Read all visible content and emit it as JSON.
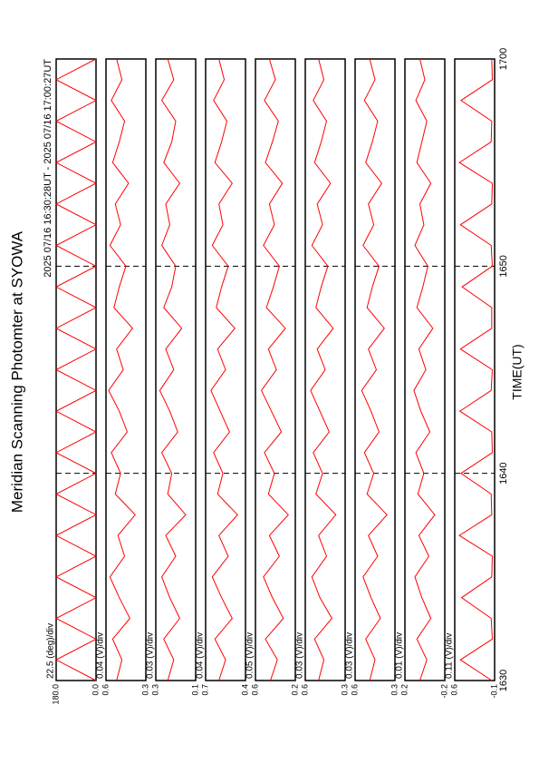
{
  "chart_data": {
    "type": "line",
    "title": "Meridian Scanning Photomter at SYOWA",
    "subtitle": "2025 07/16 16:30:28UT - 2025 07/16 17:00:27UT",
    "xlabel": "TIME(UT)",
    "xlim": [
      0,
      30
    ],
    "xticks": [
      {
        "value": 0,
        "label": "1630"
      },
      {
        "value": 10,
        "label": "1640"
      },
      {
        "value": 20,
        "label": "1650"
      },
      {
        "value": 30,
        "label": "1700"
      }
    ],
    "grid": true,
    "x": [
      0,
      1,
      2,
      3,
      4,
      5,
      6,
      7,
      8,
      9,
      10,
      11,
      12,
      13,
      14,
      15,
      16,
      17,
      18,
      19,
      20,
      21,
      22,
      23,
      24,
      25,
      26,
      27,
      28,
      29,
      30
    ],
    "series": [
      {
        "name": "22.5 (deg)/div",
        "color": "#ff0000",
        "ylim": [
          0.0,
          180.0
        ],
        "yticks": [
          {
            "value": 0,
            "label": "0.0"
          },
          {
            "value": 180,
            "label": "180.0"
          }
        ],
        "values": [
          0,
          180,
          0,
          180,
          0,
          180,
          0,
          180,
          0,
          180,
          0,
          180,
          0,
          180,
          0,
          180,
          0,
          180,
          0,
          180,
          0,
          180,
          0,
          180,
          0,
          180,
          0,
          180,
          0,
          180,
          0
        ]
      },
      {
        "name": "0.04 (V)/div",
        "color": "#ff0000",
        "ylim": [
          0.3,
          0.6
        ],
        "yticks": [
          0.3,
          0.6
        ],
        "values": [
          0.52,
          0.48,
          0.55,
          0.42,
          0.5,
          0.57,
          0.46,
          0.51,
          0.38,
          0.53,
          0.49,
          0.56,
          0.44,
          0.5,
          0.58,
          0.47,
          0.52,
          0.4,
          0.54,
          0.5,
          0.45,
          0.57,
          0.49,
          0.53,
          0.43,
          0.55,
          0.5,
          0.46,
          0.56,
          0.48,
          0.52
        ]
      },
      {
        "name": "0.03 (V)/div",
        "color": "#ff0000",
        "ylim": [
          0.1,
          0.3
        ],
        "yticks": [
          0.1,
          0.3
        ],
        "values": [
          0.24,
          0.21,
          0.26,
          0.18,
          0.23,
          0.27,
          0.2,
          0.25,
          0.15,
          0.24,
          0.22,
          0.27,
          0.19,
          0.23,
          0.28,
          0.21,
          0.25,
          0.17,
          0.26,
          0.22,
          0.2,
          0.27,
          0.23,
          0.25,
          0.18,
          0.26,
          0.22,
          0.2,
          0.27,
          0.21,
          0.24
        ]
      },
      {
        "name": "0.04 (V)/div",
        "color": "#ff0000",
        "ylim": [
          0.4,
          0.7
        ],
        "yticks": [
          0.4,
          0.7
        ],
        "values": [
          0.6,
          0.55,
          0.63,
          0.5,
          0.58,
          0.65,
          0.53,
          0.6,
          0.46,
          0.61,
          0.57,
          0.64,
          0.52,
          0.59,
          0.66,
          0.55,
          0.61,
          0.48,
          0.62,
          0.58,
          0.53,
          0.65,
          0.57,
          0.6,
          0.5,
          0.63,
          0.58,
          0.54,
          0.64,
          0.56,
          0.6
        ]
      },
      {
        "name": "0.05 (V)/div",
        "color": "#ff0000",
        "ylim": [
          0.2,
          0.6
        ],
        "yticks": [
          0.2,
          0.6
        ],
        "values": [
          0.45,
          0.38,
          0.5,
          0.32,
          0.43,
          0.52,
          0.36,
          0.46,
          0.27,
          0.47,
          0.41,
          0.51,
          0.34,
          0.44,
          0.54,
          0.39,
          0.47,
          0.3,
          0.49,
          0.42,
          0.36,
          0.52,
          0.41,
          0.46,
          0.33,
          0.5,
          0.43,
          0.37,
          0.51,
          0.4,
          0.46
        ]
      },
      {
        "name": "0.03 (V)/div",
        "color": "#ff0000",
        "ylim": [
          0.3,
          0.6
        ],
        "yticks": [
          0.3,
          0.6
        ],
        "values": [
          0.5,
          0.46,
          0.53,
          0.4,
          0.49,
          0.55,
          0.44,
          0.5,
          0.37,
          0.52,
          0.47,
          0.54,
          0.42,
          0.49,
          0.56,
          0.45,
          0.51,
          0.39,
          0.52,
          0.48,
          0.43,
          0.55,
          0.47,
          0.51,
          0.41,
          0.53,
          0.48,
          0.44,
          0.54,
          0.46,
          0.5
        ]
      },
      {
        "name": "0.03 (V)/div",
        "color": "#ff0000",
        "ylim": [
          0.3,
          0.6
        ],
        "yticks": [
          0.3,
          0.6
        ],
        "values": [
          0.49,
          0.45,
          0.52,
          0.41,
          0.48,
          0.54,
          0.43,
          0.5,
          0.36,
          0.51,
          0.46,
          0.53,
          0.42,
          0.48,
          0.55,
          0.44,
          0.5,
          0.38,
          0.51,
          0.47,
          0.42,
          0.54,
          0.46,
          0.5,
          0.4,
          0.52,
          0.47,
          0.43,
          0.53,
          0.45,
          0.49
        ]
      },
      {
        "name": "0.01 (V)/div",
        "color": "#ff0000",
        "ylim": [
          -0.2,
          0.2
        ],
        "yticks": [
          -0.2,
          0.2
        ],
        "values": [
          0.05,
          -0.02,
          0.08,
          -0.06,
          0.03,
          0.1,
          -0.04,
          0.06,
          -0.1,
          0.07,
          0.01,
          0.09,
          -0.05,
          0.04,
          0.11,
          -0.01,
          0.06,
          -0.08,
          0.08,
          0.02,
          -0.03,
          0.1,
          0.01,
          0.05,
          -0.06,
          0.08,
          0.03,
          -0.02,
          0.09,
          0,
          0.05
        ]
      },
      {
        "name": "0.11 (V)/div",
        "color": "#ff0000",
        "ylim": [
          -0.1,
          0.6
        ],
        "yticks": [
          -0.1,
          0.6
        ],
        "values": [
          -0.05,
          0.5,
          -0.06,
          -0.04,
          0.48,
          -0.05,
          -0.06,
          0.52,
          -0.05,
          -0.04,
          0.49,
          -0.06,
          -0.05,
          0.51,
          -0.04,
          -0.06,
          0.5,
          -0.05,
          -0.05,
          0.47,
          -0.06,
          -0.04,
          0.5,
          -0.05,
          -0.06,
          0.52,
          -0.04,
          -0.05,
          0.49,
          -0.06,
          -0.05
        ]
      }
    ]
  }
}
